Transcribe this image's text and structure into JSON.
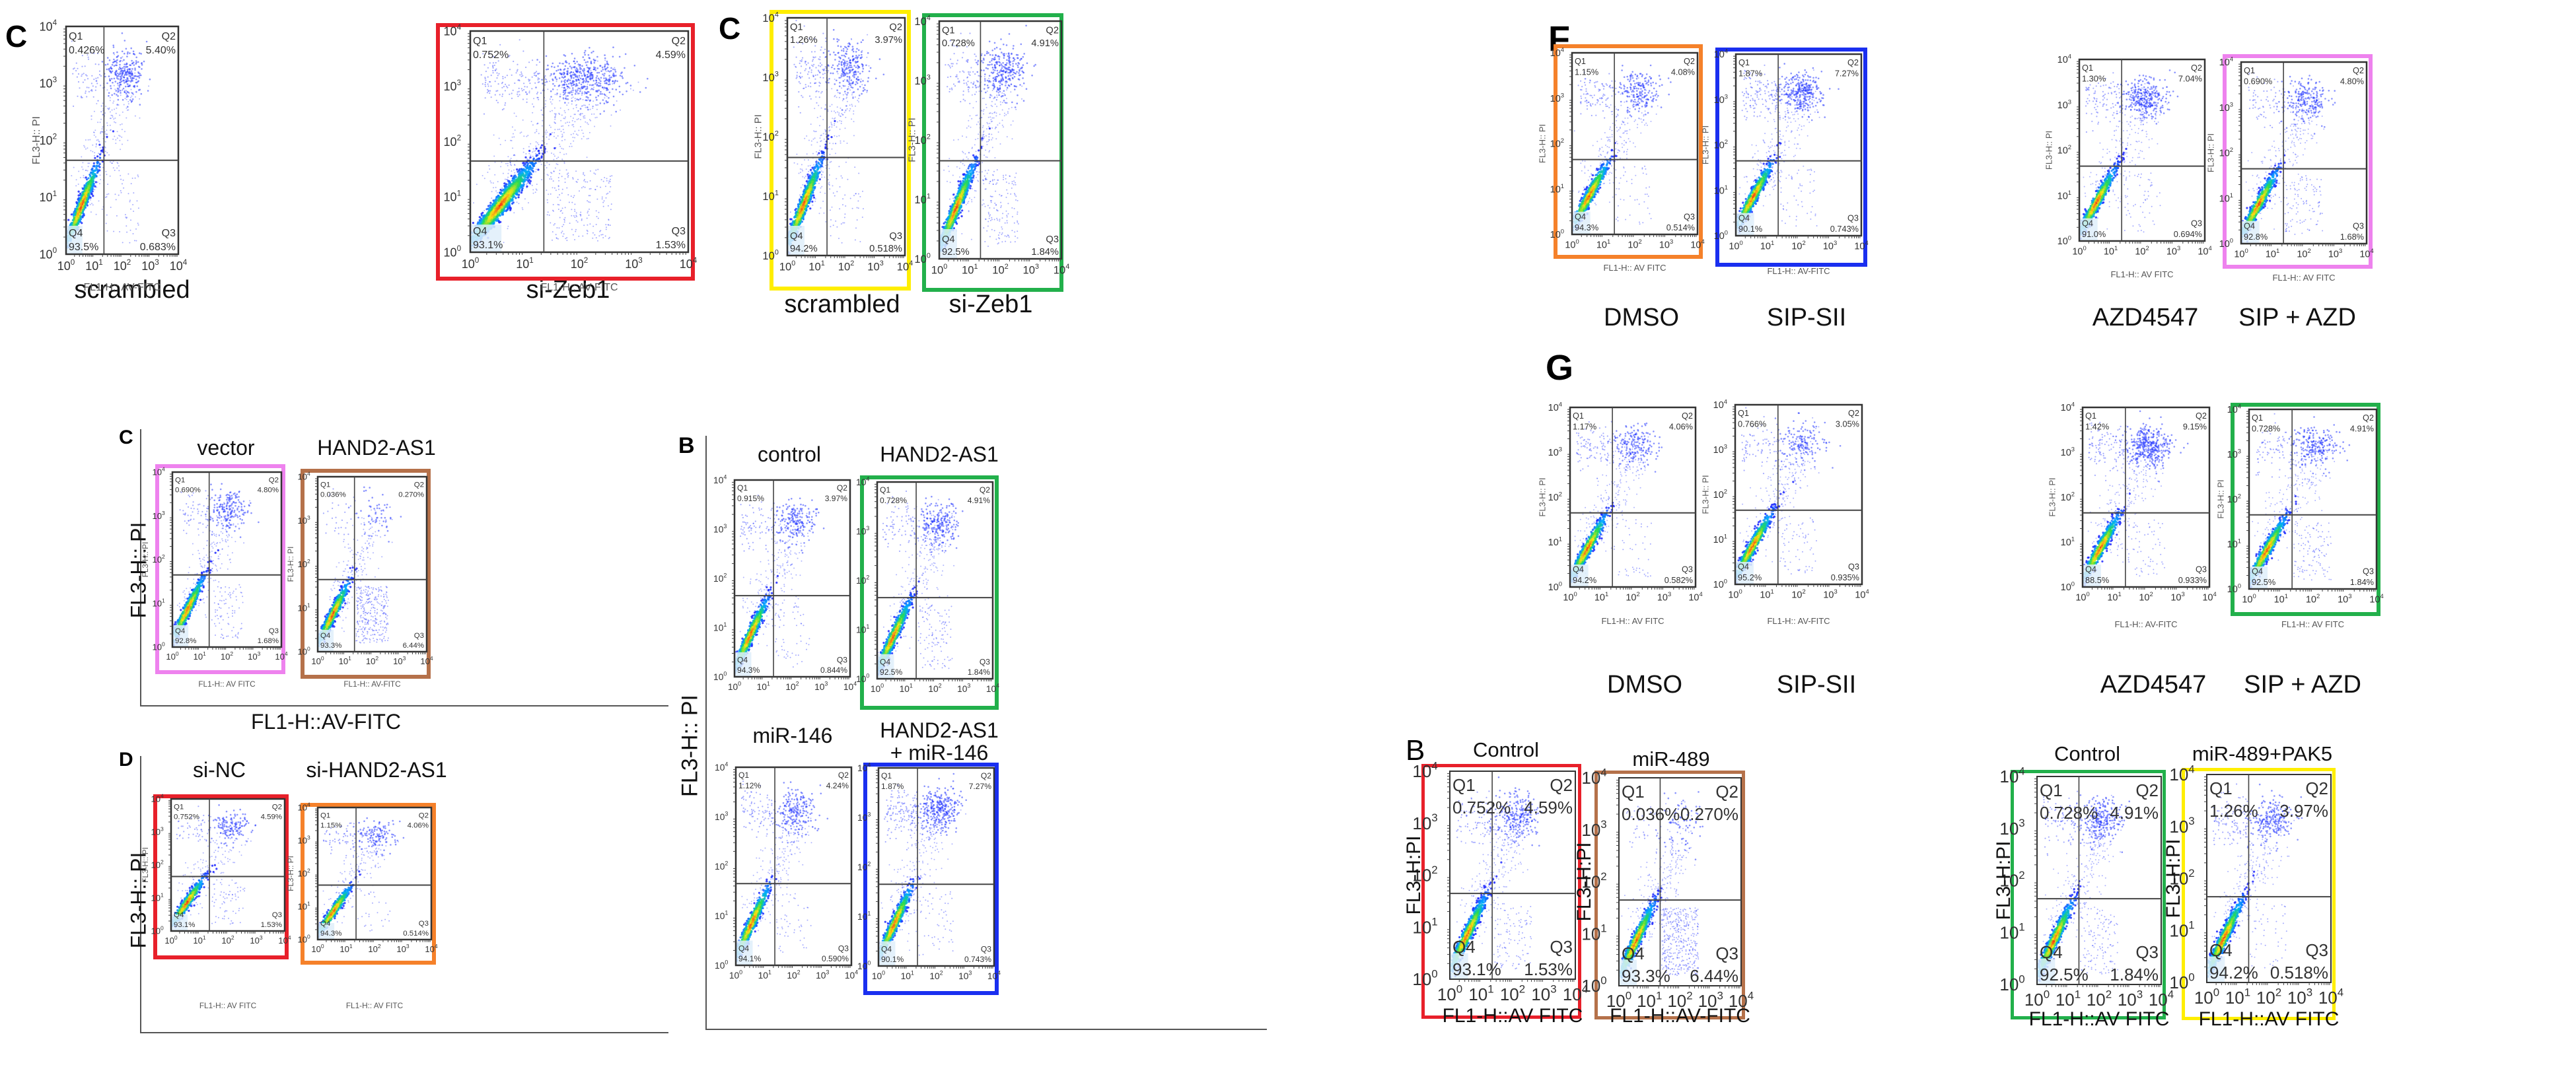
{
  "figure_title": "Annexin V-FITC / PI flow cytometry apoptosis panels",
  "colors": {
    "red": "#e8202a",
    "yellow": "#ffee00",
    "green": "#22b04b",
    "orange": "#f5812a",
    "blue": "#1a2ff0",
    "pink": "#ee82ee",
    "brown": "#b5714a",
    "gate": "#333333",
    "dot": "#2030ff"
  },
  "panel_letters": {
    "top_left": "C",
    "top_mid": "C",
    "F": "F",
    "G": "G",
    "left_c": "C",
    "left_d": "D",
    "mid_b": "B",
    "bottom_b": "B"
  },
  "axis_labels": {
    "x_small": "FL1-H:: AV-FITC",
    "x_small_alt": "FL1-H:: AV FITC",
    "y_small": "FL3-H:: PI",
    "x_big_left": "FL1-H::AV-FITC",
    "y_big_left": "FL3-H:: PI",
    "y_big_mid": "FL3-H:: PI",
    "x_bottom": "FL1-H::AV FITC",
    "x_bottom_alt": "FL1-H::AV-FITC",
    "y_bottom": "FL3-H:PI"
  },
  "chart_data": [
    {
      "id": "topleft-scrambled",
      "type": "scatter",
      "group": "top-left C",
      "title": "scrambled",
      "xlabel": "FL1-H:: AV-FITC",
      "ylabel": "FL3-H:: PI",
      "xlim": [
        1,
        10000
      ],
      "ylim": [
        1,
        10000
      ],
      "xscale": "log",
      "yscale": "log",
      "x_ticks": [
        "10^0",
        "10^1",
        "10^2",
        "10^3",
        "10^4"
      ],
      "y_ticks": [
        "10^0",
        "10^1",
        "10^2",
        "10^3",
        "10^4"
      ],
      "quadrants": {
        "Q1": "0.426%",
        "Q2": "5.40%",
        "Q3": "0.683%",
        "Q4": "93.5%"
      },
      "frame": null
    },
    {
      "id": "topleft-sizeb1",
      "type": "scatter",
      "group": "top-left C",
      "title": "si-Zeb1",
      "xlabel": "FL1-H:: AV FITC",
      "ylabel": "FL3-H:: PI",
      "xlim": [
        1,
        10000
      ],
      "ylim": [
        1,
        10000
      ],
      "xscale": "log",
      "yscale": "log",
      "x_ticks": [
        "10^0",
        "10^1",
        "10^2",
        "10^3",
        "10^4"
      ],
      "y_ticks": [
        "10^0",
        "10^1",
        "10^2",
        "10^3",
        "10^4"
      ],
      "quadrants": {
        "Q1": "0.752%",
        "Q2": "4.59%",
        "Q3": "1.53%",
        "Q4": "93.1%"
      },
      "frame": "red"
    },
    {
      "id": "topmid-scrambled",
      "type": "scatter",
      "group": "top-middle C",
      "title": "scrambled",
      "xlabel": "",
      "ylabel": "FL3-H:: PI",
      "xlim": [
        1,
        10000
      ],
      "ylim": [
        1,
        10000
      ],
      "xscale": "log",
      "yscale": "log",
      "x_ticks": [
        "10^0",
        "10^1",
        "10^2",
        "10^3",
        "10^4"
      ],
      "y_ticks": [
        "10^0",
        "10^1",
        "10^2",
        "10^3",
        "10^4"
      ],
      "quadrants": {
        "Q1": "1.26%",
        "Q2": "3.97%",
        "Q3": "0.518%",
        "Q4": "94.2%"
      },
      "frame": "yellow"
    },
    {
      "id": "topmid-sizeb1",
      "type": "scatter",
      "group": "top-middle C",
      "title": "si-Zeb1",
      "xlabel": "",
      "ylabel": "FL3-H:: PI",
      "xlim": [
        1,
        10000
      ],
      "ylim": [
        1,
        10000
      ],
      "xscale": "log",
      "yscale": "log",
      "x_ticks": [
        "10^0",
        "10^1",
        "10^2",
        "10^3",
        "10^4"
      ],
      "y_ticks": [
        "10^0",
        "10^1",
        "10^2",
        "10^3",
        "10^4"
      ],
      "quadrants": {
        "Q1": "0.728%",
        "Q2": "4.91%",
        "Q3": "1.84%",
        "Q4": "92.5%"
      },
      "frame": "green"
    },
    {
      "id": "F-dmso",
      "type": "scatter",
      "group": "F",
      "title": "DMSO",
      "xlabel": "FL1-H:: AV FITC",
      "ylabel": "FL3-H:: PI",
      "xlim": [
        1,
        10000
      ],
      "ylim": [
        1,
        10000
      ],
      "xscale": "log",
      "yscale": "log",
      "x_ticks": [
        "10^0",
        "10^1",
        "10^2",
        "10^3",
        "10^4"
      ],
      "y_ticks": [
        "10^0",
        "10^1",
        "10^2",
        "10^3",
        "10^4"
      ],
      "quadrants": {
        "Q1": "1.15%",
        "Q2": "4.08%",
        "Q3": "0.514%",
        "Q4": "94.3%"
      },
      "frame": "orange"
    },
    {
      "id": "F-sipsii",
      "type": "scatter",
      "group": "F",
      "title": "SIP-SII",
      "xlabel": "FL1-H:: AV-FITC",
      "ylabel": "FL3-H:: PI",
      "xlim": [
        1,
        10000
      ],
      "ylim": [
        1,
        10000
      ],
      "xscale": "log",
      "yscale": "log",
      "x_ticks": [
        "10^0",
        "10^1",
        "10^2",
        "10^3",
        "10^4"
      ],
      "y_ticks": [
        "10^0",
        "10^1",
        "10^2",
        "10^3",
        "10^4"
      ],
      "quadrants": {
        "Q1": "1.87%",
        "Q2": "7.27%",
        "Q3": "0.743%",
        "Q4": "90.1%"
      },
      "frame": "blue"
    },
    {
      "id": "F-azd",
      "type": "scatter",
      "group": "F",
      "title": "AZD4547",
      "xlabel": "FL1-H:: AV FITC",
      "ylabel": "FL3-H:: PI",
      "xlim": [
        1,
        10000
      ],
      "ylim": [
        1,
        10000
      ],
      "xscale": "log",
      "yscale": "log",
      "x_ticks": [
        "10^0",
        "10^1",
        "10^2",
        "10^3",
        "10^4"
      ],
      "y_ticks": [
        "10^0",
        "10^1",
        "10^2",
        "10^3",
        "10^4"
      ],
      "quadrants": {
        "Q1": "1.30%",
        "Q2": "7.04%",
        "Q3": "0.694%",
        "Q4": "91.0%"
      },
      "frame": null
    },
    {
      "id": "F-sipazd",
      "type": "scatter",
      "group": "F",
      "title": "SIP + AZD",
      "xlabel": "FL1-H:: AV FITC",
      "ylabel": "FL3-H:: PI",
      "xlim": [
        1,
        10000
      ],
      "ylim": [
        1,
        10000
      ],
      "xscale": "log",
      "yscale": "log",
      "x_ticks": [
        "10^0",
        "10^1",
        "10^2",
        "10^3",
        "10^4"
      ],
      "y_ticks": [
        "10^0",
        "10^1",
        "10^2",
        "10^3",
        "10^4"
      ],
      "quadrants": {
        "Q1": "0.690%",
        "Q2": "4.80%",
        "Q3": "1.68%",
        "Q4": "92.8%"
      },
      "frame": "pink"
    },
    {
      "id": "G-dmso",
      "type": "scatter",
      "group": "G",
      "title": "DMSO",
      "xlabel": "FL1-H:: AV FITC",
      "ylabel": "FL3-H:: PI",
      "xlim": [
        1,
        10000
      ],
      "ylim": [
        1,
        10000
      ],
      "xscale": "log",
      "yscale": "log",
      "x_ticks": [
        "10^0",
        "10^1",
        "10^2",
        "10^3",
        "10^4"
      ],
      "y_ticks": [
        "10^0",
        "10^1",
        "10^2",
        "10^3",
        "10^4"
      ],
      "quadrants": {
        "Q1": "1.17%",
        "Q2": "4.06%",
        "Q3": "0.582%",
        "Q4": "94.2%"
      },
      "frame": null
    },
    {
      "id": "G-sipsii",
      "type": "scatter",
      "group": "G",
      "title": "SIP-SII",
      "xlabel": "FL1-H:: AV-FITC",
      "ylabel": "FL3-H:: PI",
      "xlim": [
        1,
        10000
      ],
      "ylim": [
        1,
        10000
      ],
      "xscale": "log",
      "yscale": "log",
      "x_ticks": [
        "10^0",
        "10^1",
        "10^2",
        "10^3",
        "10^4"
      ],
      "y_ticks": [
        "10^0",
        "10^1",
        "10^2",
        "10^3",
        "10^4"
      ],
      "quadrants": {
        "Q1": "0.766%",
        "Q2": "3.05%",
        "Q3": "0.935%",
        "Q4": "95.2%"
      },
      "frame": null
    },
    {
      "id": "G-azd",
      "type": "scatter",
      "group": "G",
      "title": "AZD4547",
      "xlabel": "FL1-H:: AV-FITC",
      "ylabel": "FL3-H:: PI",
      "xlim": [
        1,
        10000
      ],
      "ylim": [
        1,
        10000
      ],
      "xscale": "log",
      "yscale": "log",
      "x_ticks": [
        "10^0",
        "10^1",
        "10^2",
        "10^3",
        "10^4"
      ],
      "y_ticks": [
        "10^0",
        "10^1",
        "10^2",
        "10^3",
        "10^4"
      ],
      "quadrants": {
        "Q1": "1.42%",
        "Q2": "9.15%",
        "Q3": "0.933%",
        "Q4": "88.5%"
      },
      "frame": null
    },
    {
      "id": "G-sipazd",
      "type": "scatter",
      "group": "G",
      "title": "SIP + AZD",
      "xlabel": "FL1-H:: AV FITC",
      "ylabel": "FL3-H:: PI",
      "xlim": [
        1,
        10000
      ],
      "ylim": [
        1,
        10000
      ],
      "xscale": "log",
      "yscale": "log",
      "x_ticks": [
        "10^0",
        "10^1",
        "10^2",
        "10^3",
        "10^4"
      ],
      "y_ticks": [
        "10^0",
        "10^1",
        "10^2",
        "10^3",
        "10^4"
      ],
      "quadrants": {
        "Q1": "0.728%",
        "Q2": "4.91%",
        "Q3": "1.84%",
        "Q4": "92.5%"
      },
      "frame": "green"
    },
    {
      "id": "leftC-vector",
      "type": "scatter",
      "group": "left C",
      "title": "vector",
      "xlabel": "FL1-H:: AV FITC",
      "ylabel": "FL3-H:: PI",
      "xlim": [
        1,
        10000
      ],
      "ylim": [
        1,
        10000
      ],
      "xscale": "log",
      "yscale": "log",
      "x_ticks": [
        "10^0",
        "10^1",
        "10^2",
        "10^3",
        "10^4"
      ],
      "y_ticks": [
        "10^0",
        "10^1",
        "10^2",
        "10^3",
        "10^4"
      ],
      "quadrants": {
        "Q1": "0.690%",
        "Q2": "4.80%",
        "Q3": "1.68%",
        "Q4": "92.8%"
      },
      "frame": "pink"
    },
    {
      "id": "leftC-hand2",
      "type": "scatter",
      "group": "left C",
      "title": "HAND2-AS1",
      "xlabel": "FL1-H:: AV-FITC",
      "ylabel": "FL3-H:: PI",
      "xlim": [
        1,
        10000
      ],
      "ylim": [
        1,
        10000
      ],
      "xscale": "log",
      "yscale": "log",
      "x_ticks": [
        "10^0",
        "10^1",
        "10^2",
        "10^3",
        "10^4"
      ],
      "y_ticks": [
        "10^0",
        "10^1",
        "10^2",
        "10^3",
        "10^4"
      ],
      "quadrants": {
        "Q1": "0.036%",
        "Q2": "0.270%",
        "Q3": "6.44%",
        "Q4": "93.3%"
      },
      "frame": "brown"
    },
    {
      "id": "leftD-sinc",
      "type": "scatter",
      "group": "left D",
      "title": "si-NC",
      "xlabel": "FL1-H:: AV FITC",
      "ylabel": "FL3-H:: PI",
      "xlim": [
        1,
        10000
      ],
      "ylim": [
        1,
        10000
      ],
      "xscale": "log",
      "yscale": "log",
      "x_ticks": [
        "10^0",
        "10^1",
        "10^2",
        "10^3",
        "10^4"
      ],
      "y_ticks": [
        "10^0",
        "10^1",
        "10^2",
        "10^3",
        "10^4"
      ],
      "quadrants": {
        "Q1": "0.752%",
        "Q2": "4.59%",
        "Q3": "1.53%",
        "Q4": "93.1%"
      },
      "frame": "red"
    },
    {
      "id": "leftD-sihand2",
      "type": "scatter",
      "group": "left D",
      "title": "si-HAND2-AS1",
      "xlabel": "FL1-H:: AV FITC",
      "ylabel": "FL3-H:: PI",
      "xlim": [
        1,
        10000
      ],
      "ylim": [
        1,
        10000
      ],
      "xscale": "log",
      "yscale": "log",
      "x_ticks": [
        "10^0",
        "10^1",
        "10^2",
        "10^3",
        "10^4"
      ],
      "y_ticks": [
        "10^0",
        "10^1",
        "10^2",
        "10^3",
        "10^4"
      ],
      "quadrants": {
        "Q1": "1.15%",
        "Q2": "4.06%",
        "Q3": "0.514%",
        "Q4": "94.3%"
      },
      "frame": "orange"
    },
    {
      "id": "midB-control",
      "type": "scatter",
      "group": "middle B",
      "title": "control",
      "xlabel": "",
      "ylabel": "",
      "xlim": [
        1,
        10000
      ],
      "ylim": [
        1,
        10000
      ],
      "xscale": "log",
      "yscale": "log",
      "x_ticks": [
        "10^0",
        "10^1",
        "10^2",
        "10^3",
        "10^4"
      ],
      "y_ticks": [
        "10^0",
        "10^1",
        "10^2",
        "10^3",
        "10^4"
      ],
      "quadrants": {
        "Q1": "0.915%",
        "Q2": "3.97%",
        "Q3": "0.844%",
        "Q4": "94.3%"
      },
      "frame": null
    },
    {
      "id": "midB-hand2",
      "type": "scatter",
      "group": "middle B",
      "title": "HAND2-AS1",
      "xlabel": "",
      "ylabel": "",
      "xlim": [
        1,
        10000
      ],
      "ylim": [
        1,
        10000
      ],
      "xscale": "log",
      "yscale": "log",
      "x_ticks": [
        "10^0",
        "10^1",
        "10^2",
        "10^3",
        "10^4"
      ],
      "y_ticks": [
        "10^0",
        "10^1",
        "10^2",
        "10^3",
        "10^4"
      ],
      "quadrants": {
        "Q1": "0.728%",
        "Q2": "4.91%",
        "Q3": "1.84%",
        "Q4": "92.5%"
      },
      "frame": "green"
    },
    {
      "id": "midB-mir146",
      "type": "scatter",
      "group": "middle B",
      "title": "miR-146",
      "xlabel": "",
      "ylabel": "",
      "xlim": [
        1,
        10000
      ],
      "ylim": [
        1,
        10000
      ],
      "xscale": "log",
      "yscale": "log",
      "x_ticks": [
        "10^0",
        "10^1",
        "10^2",
        "10^3",
        "10^4"
      ],
      "y_ticks": [
        "10^0",
        "10^1",
        "10^2",
        "10^3",
        "10^4"
      ],
      "quadrants": {
        "Q1": "1.12%",
        "Q2": "4.24%",
        "Q3": "0.590%",
        "Q4": "94.1%"
      },
      "frame": null
    },
    {
      "id": "midB-hand2mir",
      "type": "scatter",
      "group": "middle B",
      "title": "HAND2-AS1\n+ miR-146",
      "xlabel": "",
      "ylabel": "",
      "xlim": [
        1,
        10000
      ],
      "ylim": [
        1,
        10000
      ],
      "xscale": "log",
      "yscale": "log",
      "x_ticks": [
        "10^0",
        "10^1",
        "10^2",
        "10^3",
        "10^4"
      ],
      "y_ticks": [
        "10^0",
        "10^1",
        "10^2",
        "10^3",
        "10^4"
      ],
      "quadrants": {
        "Q1": "1.87%",
        "Q2": "7.27%",
        "Q3": "0.743%",
        "Q4": "90.1%"
      },
      "frame": "blue"
    },
    {
      "id": "bottomB-control1",
      "type": "scatter",
      "group": "bottom B",
      "title": "Control",
      "xlabel": "FL1-H::AV FITC",
      "ylabel": "FL3-H:PI",
      "xlim": [
        1,
        10000
      ],
      "ylim": [
        1,
        10000
      ],
      "xscale": "log",
      "yscale": "log",
      "x_ticks": [
        "10^0",
        "10^1",
        "10^2",
        "10^3",
        "10^4"
      ],
      "y_ticks": [
        "10^0",
        "10^1",
        "10^2",
        "10^3",
        "10^4"
      ],
      "quadrants": {
        "Q1": "0.752%",
        "Q2": "4.59%",
        "Q3": "1.53%",
        "Q4": "93.1%"
      },
      "frame": "red"
    },
    {
      "id": "bottomB-mir489",
      "type": "scatter",
      "group": "bottom B",
      "title": "miR-489",
      "xlabel": "FL1-H::AV-FITC",
      "ylabel": "FL3-H:PI",
      "xlim": [
        1,
        10000
      ],
      "ylim": [
        1,
        10000
      ],
      "xscale": "log",
      "yscale": "log",
      "x_ticks": [
        "10^0",
        "10^1",
        "10^2",
        "10^3",
        "10^4"
      ],
      "y_ticks": [
        "10^0",
        "10^1",
        "10^2",
        "10^3",
        "10^4"
      ],
      "quadrants": {
        "Q1": "0.036%",
        "Q2": "0.270%",
        "Q3": "6.44%",
        "Q4": "93.3%"
      },
      "frame": "brown"
    },
    {
      "id": "bottomB-control2",
      "type": "scatter",
      "group": "bottom B",
      "title": "Control",
      "xlabel": "FL1-H::AV FITC",
      "ylabel": "FL3-H:PI",
      "xlim": [
        1,
        10000
      ],
      "ylim": [
        1,
        10000
      ],
      "xscale": "log",
      "yscale": "log",
      "x_ticks": [
        "10^0",
        "10^1",
        "10^2",
        "10^3",
        "10^4"
      ],
      "y_ticks": [
        "10^0",
        "10^1",
        "10^2",
        "10^3",
        "10^4"
      ],
      "quadrants": {
        "Q1": "0.728%",
        "Q2": "4.91%",
        "Q3": "1.84%",
        "Q4": "92.5%"
      },
      "frame": "green"
    },
    {
      "id": "bottomB-mir489pak5",
      "type": "scatter",
      "group": "bottom B",
      "title": "miR-489+PAK5",
      "xlabel": "FL1-H::AV FITC",
      "ylabel": "FL3-H:PI",
      "xlim": [
        1,
        10000
      ],
      "ylim": [
        1,
        10000
      ],
      "xscale": "log",
      "yscale": "log",
      "x_ticks": [
        "10^0",
        "10^1",
        "10^2",
        "10^3",
        "10^4"
      ],
      "y_ticks": [
        "10^0",
        "10^1",
        "10^2",
        "10^3",
        "10^4"
      ],
      "quadrants": {
        "Q1": "1.26%",
        "Q2": "3.97%",
        "Q3": "0.518%",
        "Q4": "94.2%"
      },
      "frame": "yellow"
    }
  ]
}
